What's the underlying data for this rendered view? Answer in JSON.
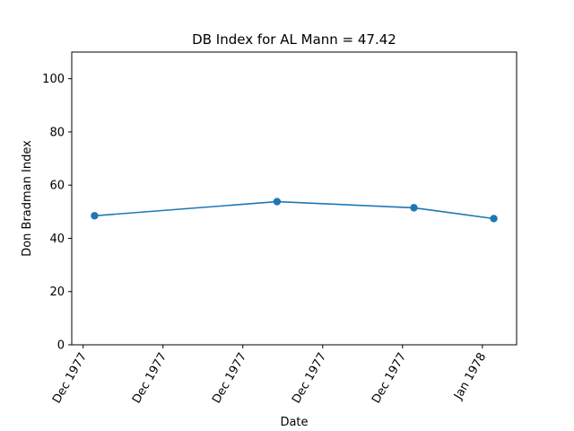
{
  "chart_data": {
    "type": "line",
    "title": "DB Index for AL Mann = 47.42",
    "xlabel": "Date",
    "ylabel": "Don Bradman Index",
    "x_tick_labels": [
      "Dec 1977",
      "Dec 1977",
      "Dec 1977",
      "Dec 1977",
      "Dec 1977",
      "Jan 1978"
    ],
    "y_ticks": [
      0,
      20,
      40,
      60,
      80,
      100
    ],
    "ylim": [
      0,
      110
    ],
    "grid": false,
    "legend": "none",
    "series": [
      {
        "color": "#1f77b4",
        "marker": "circle",
        "points": [
          {
            "x": "1977-12-02",
            "y": 48.5
          },
          {
            "x": "1977-12-18",
            "y": 53.8
          },
          {
            "x": "1977-12-30",
            "y": 51.5
          },
          {
            "x": "1978-01-06",
            "y": 47.42
          }
        ]
      }
    ]
  }
}
